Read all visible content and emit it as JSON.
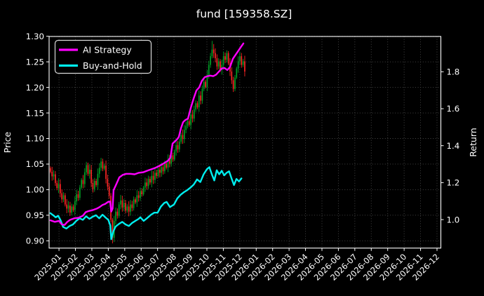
{
  "title": "fund [159358.SZ]",
  "colors": {
    "background": "#000000",
    "text": "#ffffff",
    "spine": "#ffffff",
    "grid": "#4a4a4a",
    "ai_strategy": "#ff00ff",
    "buy_and_hold": "#00eeee",
    "candle_up": "#00a226",
    "candle_down": "#fb2424"
  },
  "legend": {
    "items": [
      {
        "label": "AI Strategy",
        "color": "#ff00ff"
      },
      {
        "label": "Buy-and-Hold",
        "color": "#00eeee"
      }
    ]
  },
  "chart_data": {
    "type": "candlestick+line",
    "title": "fund [159358.SZ]",
    "grid": "dotted, on month ticks and price ticks",
    "legend_position": "upper left",
    "x_axis": {
      "tick_labels": [
        "2025-01",
        "2025-02",
        "2025-03",
        "2025-04",
        "2025-05",
        "2025-06",
        "2025-07",
        "2025-08",
        "2025-09",
        "2025-10",
        "2025-11",
        "2025-12",
        "2026-01",
        "2026-02",
        "2026-03",
        "2026-04",
        "2026-05",
        "2026-06",
        "2026-07",
        "2026-08",
        "2026-09",
        "2026-10",
        "2026-11",
        "2026-12"
      ],
      "rotation_deg": 45,
      "range_in_tick_units": [
        -0.6,
        23.24
      ],
      "note_t_units": "t=0 at 2025-01 tick, 1 unit = 1 month; plotted data ends near t=11.3 (mid-Dec 2025)"
    },
    "left_axis": {
      "label": "Price",
      "ticks": [
        0.9,
        0.95,
        1.0,
        1.05,
        1.1,
        1.15,
        1.2,
        1.25,
        1.3
      ],
      "range": [
        0.8857,
        1.2989
      ]
    },
    "right_axis": {
      "label": "Return",
      "ticks": [
        1.0,
        1.2,
        1.4,
        1.6,
        1.8
      ],
      "range": [
        0.8467,
        1.9907
      ]
    },
    "series": [
      {
        "name": "AI Strategy",
        "type": "line",
        "color": "#ff00ff",
        "width": 2.4,
        "scale": "left(price)",
        "points": [
          [
            -0.52,
            0.94
          ],
          [
            -0.26,
            0.937
          ],
          [
            0.0,
            0.939
          ],
          [
            0.17,
            0.932
          ],
          [
            0.34,
            0.931
          ],
          [
            0.51,
            0.937
          ],
          [
            0.68,
            0.941
          ],
          [
            0.93,
            0.944
          ],
          [
            1.19,
            0.945
          ],
          [
            1.45,
            0.949
          ],
          [
            1.62,
            0.956
          ],
          [
            1.79,
            0.958
          ],
          [
            2.04,
            0.96
          ],
          [
            2.3,
            0.963
          ],
          [
            2.47,
            0.966
          ],
          [
            2.64,
            0.97
          ],
          [
            2.81,
            0.972
          ],
          [
            2.98,
            0.976
          ],
          [
            3.11,
            0.977
          ],
          [
            3.18,
            0.957
          ],
          [
            3.26,
            0.963
          ],
          [
            3.32,
            0.999
          ],
          [
            3.45,
            1.008
          ],
          [
            3.67,
            1.024
          ],
          [
            3.88,
            1.029
          ],
          [
            4.09,
            1.031
          ],
          [
            4.35,
            1.031
          ],
          [
            4.6,
            1.03
          ],
          [
            4.86,
            1.033
          ],
          [
            5.12,
            1.034
          ],
          [
            5.37,
            1.037
          ],
          [
            5.63,
            1.04
          ],
          [
            5.88,
            1.043
          ],
          [
            6.14,
            1.047
          ],
          [
            6.4,
            1.052
          ],
          [
            6.65,
            1.057
          ],
          [
            6.78,
            1.063
          ],
          [
            6.91,
            1.09
          ],
          [
            7.04,
            1.094
          ],
          [
            7.17,
            1.098
          ],
          [
            7.29,
            1.103
          ],
          [
            7.42,
            1.12
          ],
          [
            7.55,
            1.132
          ],
          [
            7.68,
            1.136
          ],
          [
            7.85,
            1.139
          ],
          [
            8.02,
            1.16
          ],
          [
            8.19,
            1.178
          ],
          [
            8.36,
            1.194
          ],
          [
            8.53,
            1.2
          ],
          [
            8.7,
            1.213
          ],
          [
            8.87,
            1.22
          ],
          [
            9.04,
            1.222
          ],
          [
            9.21,
            1.223
          ],
          [
            9.38,
            1.222
          ],
          [
            9.56,
            1.225
          ],
          [
            9.73,
            1.231
          ],
          [
            9.9,
            1.237
          ],
          [
            10.07,
            1.238
          ],
          [
            10.24,
            1.234
          ],
          [
            10.41,
            1.24
          ],
          [
            10.58,
            1.256
          ],
          [
            10.75,
            1.264
          ],
          [
            10.92,
            1.272
          ],
          [
            11.09,
            1.28
          ],
          [
            11.22,
            1.286
          ]
        ]
      },
      {
        "name": "Buy-and-Hold",
        "type": "line",
        "color": "#00eeee",
        "width": 2.4,
        "scale": "left(price)",
        "points": [
          [
            -0.52,
            0.954
          ],
          [
            -0.35,
            0.95
          ],
          [
            -0.2,
            0.946
          ],
          [
            -0.05,
            0.949
          ],
          [
            0.1,
            0.94
          ],
          [
            0.25,
            0.927
          ],
          [
            0.45,
            0.924
          ],
          [
            0.65,
            0.929
          ],
          [
            0.85,
            0.932
          ],
          [
            1.05,
            0.939
          ],
          [
            1.25,
            0.944
          ],
          [
            1.45,
            0.941
          ],
          [
            1.65,
            0.948
          ],
          [
            1.85,
            0.943
          ],
          [
            2.05,
            0.947
          ],
          [
            2.25,
            0.95
          ],
          [
            2.45,
            0.944
          ],
          [
            2.65,
            0.951
          ],
          [
            2.85,
            0.945
          ],
          [
            3.0,
            0.941
          ],
          [
            3.12,
            0.93
          ],
          [
            3.18,
            0.903
          ],
          [
            3.3,
            0.918
          ],
          [
            3.45,
            0.928
          ],
          [
            3.65,
            0.933
          ],
          [
            3.85,
            0.937
          ],
          [
            4.05,
            0.932
          ],
          [
            4.25,
            0.929
          ],
          [
            4.45,
            0.935
          ],
          [
            4.65,
            0.939
          ],
          [
            4.85,
            0.943
          ],
          [
            4.95,
            0.946
          ],
          [
            5.15,
            0.939
          ],
          [
            5.35,
            0.944
          ],
          [
            5.6,
            0.951
          ],
          [
            5.8,
            0.955
          ],
          [
            6.0,
            0.955
          ],
          [
            6.2,
            0.967
          ],
          [
            6.4,
            0.974
          ],
          [
            6.55,
            0.976
          ],
          [
            6.75,
            0.966
          ],
          [
            7.0,
            0.971
          ],
          [
            7.2,
            0.983
          ],
          [
            7.4,
            0.99
          ],
          [
            7.6,
            0.995
          ],
          [
            7.8,
            0.999
          ],
          [
            8.0,
            1.004
          ],
          [
            8.2,
            1.01
          ],
          [
            8.4,
            1.02
          ],
          [
            8.6,
            1.015
          ],
          [
            8.8,
            1.03
          ],
          [
            9.0,
            1.04
          ],
          [
            9.15,
            1.044
          ],
          [
            9.3,
            1.03
          ],
          [
            9.45,
            1.018
          ],
          [
            9.6,
            1.038
          ],
          [
            9.75,
            1.03
          ],
          [
            9.9,
            1.037
          ],
          [
            10.05,
            1.028
          ],
          [
            10.2,
            1.033
          ],
          [
            10.35,
            1.036
          ],
          [
            10.5,
            1.022
          ],
          [
            10.65,
            1.009
          ],
          [
            10.8,
            1.021
          ],
          [
            10.95,
            1.016
          ],
          [
            11.1,
            1.022
          ]
        ]
      },
      {
        "name": "daily-candles",
        "type": "candlestick",
        "up_color": "#00a226",
        "down_color": "#fb2424",
        "scale": "left(price)",
        "t_start": -0.52,
        "t_step": 0.09935,
        "first_open": 1.042,
        "closes": [
          1.035,
          1.026,
          1.03,
          1.013,
          1.003,
          1.011,
          0.993,
          0.981,
          0.989,
          0.971,
          0.963,
          0.969,
          0.955,
          0.967,
          0.96,
          0.977,
          0.991,
          0.984,
          1.004,
          1.019,
          1.011,
          1.034,
          1.048,
          1.031,
          1.039,
          1.013,
          1.001,
          1.017,
          1.009,
          1.031,
          1.043,
          1.055,
          1.041,
          1.047,
          1.021,
          1.006,
          0.988,
          0.941,
          0.906,
          0.939,
          0.957,
          0.949,
          0.971,
          0.979,
          0.965,
          0.974,
          0.959,
          0.967,
          0.957,
          0.971,
          0.964,
          0.981,
          0.975,
          0.989,
          0.984,
          0.997,
          0.991,
          1.004,
          1.014,
          1.007,
          1.021,
          1.014,
          1.027,
          1.019,
          1.033,
          1.027,
          1.039,
          1.033,
          1.044,
          1.036,
          1.051,
          1.043,
          1.059,
          1.051,
          1.067,
          1.059,
          1.075,
          1.087,
          1.079,
          1.094,
          1.107,
          1.099,
          1.117,
          1.125,
          1.134,
          1.127,
          1.147,
          1.139,
          1.157,
          1.169,
          1.161,
          1.184,
          1.174,
          1.197,
          1.211,
          1.201,
          1.224,
          1.244,
          1.261,
          1.274,
          1.267,
          1.257,
          1.241,
          1.251,
          1.234,
          1.244,
          1.261,
          1.254,
          1.267,
          1.247,
          1.231,
          1.214,
          1.197,
          1.219,
          1.237,
          1.251,
          1.261,
          1.244,
          1.251,
          1.231
        ],
        "wick_overrides": {
          "38": {
            "low": 0.895
          },
          "99": {
            "high": 1.291
          }
        }
      }
    ]
  }
}
